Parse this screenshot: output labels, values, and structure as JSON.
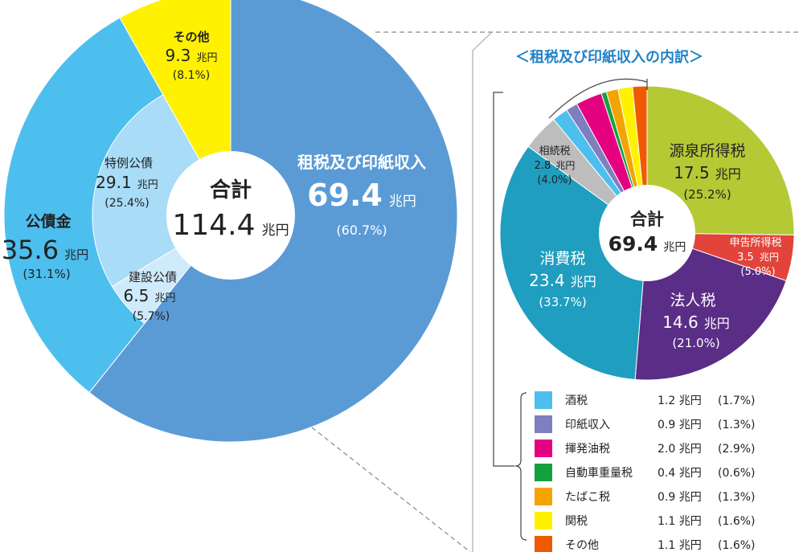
{
  "unit": "兆円",
  "charts": [
    {
      "type": "pie",
      "total_label": "合計",
      "total_value": "114.4",
      "slices": [
        {
          "name": "租税及び印紙収入",
          "value": 69.4,
          "pct": "(60.7%)",
          "color": "#5b9bd5"
        },
        {
          "name": "公債金",
          "value": 35.6,
          "pct": "(31.1%)",
          "color": "#4dbfee"
        },
        {
          "name": "その他",
          "value": 9.3,
          "pct": "(8.1%)",
          "color": "#fff100"
        }
      ],
      "inner_slices": [
        {
          "name": "建設公債",
          "value": 6.5,
          "pct": "(5.7%)",
          "color": "#cfeafb"
        },
        {
          "name": "特例公債",
          "value": 29.1,
          "pct": "(25.4%)",
          "color": "#a9dcf6"
        }
      ]
    },
    {
      "type": "pie",
      "title": "＜租税及び印紙収入の内訳＞",
      "total_label": "合計",
      "total_value": "69.4",
      "slices": [
        {
          "name": "源泉所得税",
          "value": 17.5,
          "pct": "(25.2%)",
          "color": "#b5c935"
        },
        {
          "name": "申告所得税",
          "value": 3.5,
          "pct": "(5.0%)",
          "color": "#e2443b"
        },
        {
          "name": "法人税",
          "value": 14.6,
          "pct": "(21.0%)",
          "color": "#5a2d86"
        },
        {
          "name": "消費税",
          "value": 23.4,
          "pct": "(33.7%)",
          "color": "#1f9ec0"
        },
        {
          "name": "相続税",
          "value": 2.8,
          "pct": "(4.0%)",
          "color": "#bdbdbd"
        },
        {
          "name": "酒税",
          "value": 1.2,
          "pct": "(1.7%)",
          "color": "#4dbfee"
        },
        {
          "name": "印紙収入",
          "value": 0.9,
          "pct": "(1.3%)",
          "color": "#7f7fbf"
        },
        {
          "name": "揮発油税",
          "value": 2.0,
          "pct": "(2.9%)",
          "color": "#e5007f"
        },
        {
          "name": "自動車重量税",
          "value": 0.4,
          "pct": "(0.6%)",
          "color": "#15a040"
        },
        {
          "name": "たばこ税",
          "value": 0.9,
          "pct": "(1.3%)",
          "color": "#f4a300"
        },
        {
          "name": "関税",
          "value": 1.1,
          "pct": "(1.6%)",
          "color": "#fff100"
        },
        {
          "name": "その他",
          "value": 1.1,
          "pct": "(1.6%)",
          "color": "#ef5a00"
        }
      ]
    }
  ]
}
